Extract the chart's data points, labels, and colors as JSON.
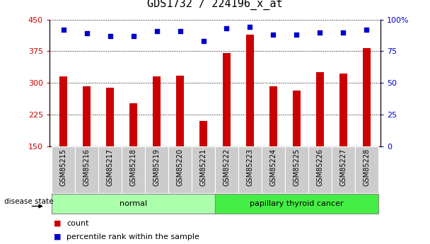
{
  "title": "GDS1732 / 224196_x_at",
  "samples": [
    "GSM85215",
    "GSM85216",
    "GSM85217",
    "GSM85218",
    "GSM85219",
    "GSM85220",
    "GSM85221",
    "GSM85222",
    "GSM85223",
    "GSM85224",
    "GSM85225",
    "GSM85226",
    "GSM85227",
    "GSM85228"
  ],
  "counts": [
    315,
    292,
    288,
    252,
    315,
    318,
    210,
    370,
    415,
    292,
    282,
    325,
    322,
    383
  ],
  "percentiles": [
    92,
    89,
    87,
    87,
    91,
    91,
    83,
    93,
    94,
    88,
    88,
    90,
    90,
    92
  ],
  "ylim_left": [
    150,
    450
  ],
  "ylim_right": [
    0,
    100
  ],
  "yticks_left": [
    150,
    225,
    300,
    375,
    450
  ],
  "yticks_right": [
    0,
    25,
    50,
    75,
    100
  ],
  "bar_color": "#cc0000",
  "dot_color": "#0000cc",
  "group1_label": "normal",
  "group2_label": "papillary thyroid cancer",
  "group1_indices": [
    0,
    1,
    2,
    3,
    4,
    5,
    6
  ],
  "group2_indices": [
    7,
    8,
    9,
    10,
    11,
    12,
    13
  ],
  "group1_bg": "#aaffaa",
  "group2_bg": "#44ee44",
  "xlabel_label": "disease state",
  "tick_bg": "#cccccc",
  "legend_count_label": "count",
  "legend_percentile_label": "percentile rank within the sample",
  "grid_color": "#000000",
  "title_fontsize": 11,
  "tick_fontsize": 8,
  "label_fontsize": 7,
  "group_fontsize": 8
}
